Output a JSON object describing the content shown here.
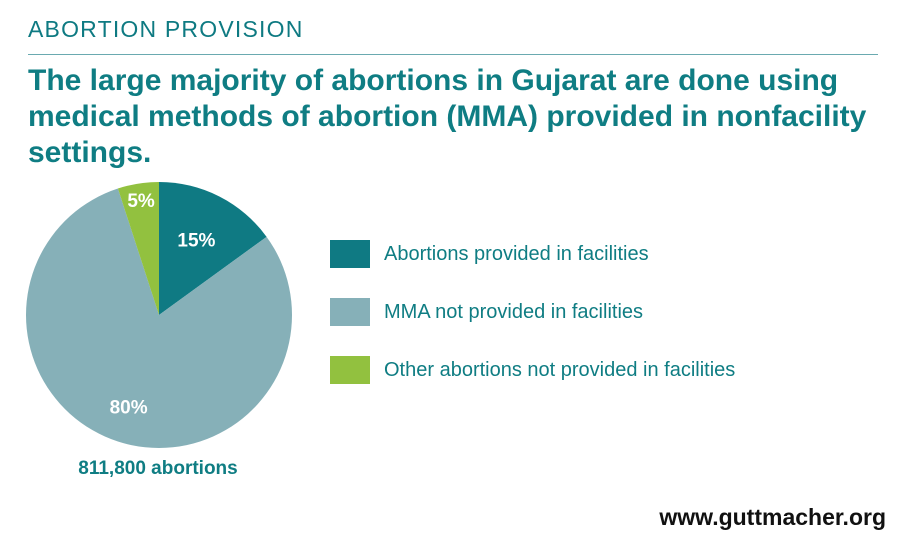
{
  "header": {
    "section_label": "ABORTION PROVISION",
    "headline": "The large majority of abortions in Gujarat are done using medical methods of abortion (MMA) provided in nonfacility settings."
  },
  "chart_data": {
    "type": "pie",
    "title": "",
    "slices": [
      {
        "label": "Abortions provided in facilities",
        "value": 15,
        "display": "15%",
        "color": "#0f7a83"
      },
      {
        "label": "MMA not provided in facilities",
        "value": 80,
        "display": "80%",
        "color": "#86b0b8"
      },
      {
        "label": "Other abortions not provided in facilities",
        "value": 5,
        "display": "5%",
        "color": "#92c13f"
      }
    ],
    "total_label": "811,800 abortions",
    "legend_position": "right"
  },
  "footer": {
    "url": "www.guttmacher.org"
  }
}
